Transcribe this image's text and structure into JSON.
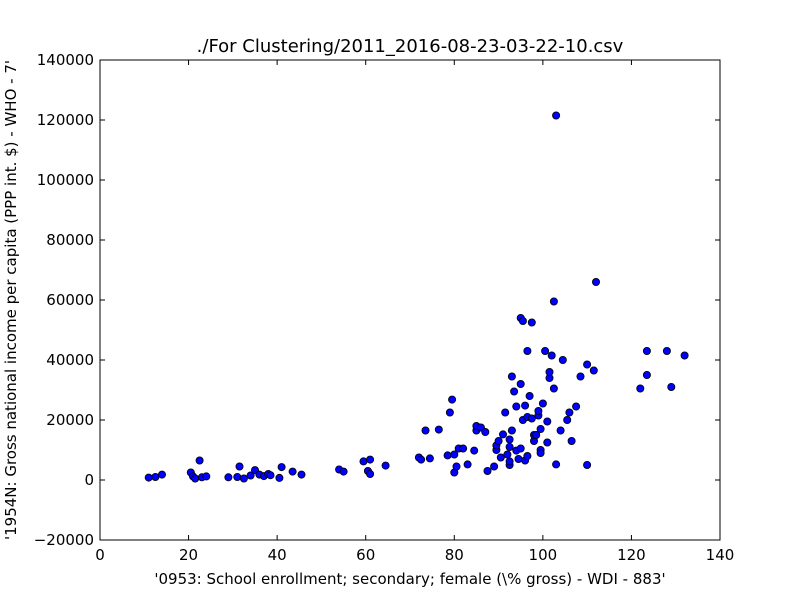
{
  "chart_data": {
    "type": "scatter",
    "title": "./For Clustering/2011_2016-08-23-03-22-10.csv",
    "xlabel": "'0953: School enrollment; secondary; female  (\\% gross) - WDI - 883'",
    "ylabel": "'1954N: Gross national income per capita (PPP int. $) - WHO - 7'",
    "xlim": [
      0,
      140
    ],
    "ylim": [
      -20000,
      140000
    ],
    "xticks": [
      0,
      20,
      40,
      60,
      80,
      100,
      120,
      140
    ],
    "yticks": [
      -20000,
      0,
      20000,
      40000,
      60000,
      80000,
      100000,
      120000,
      140000
    ],
    "xtick_labels": [
      "0",
      "20",
      "40",
      "60",
      "80",
      "100",
      "120",
      "140"
    ],
    "ytick_labels": [
      "−20000",
      "0",
      "20000",
      "40000",
      "60000",
      "80000",
      "100000",
      "120000",
      "140000"
    ],
    "grid": false,
    "marker_color": "#0000ff",
    "marker_edge_color": "#000000",
    "points": [
      [
        11,
        800
      ],
      [
        12.5,
        1000
      ],
      [
        14,
        1800
      ],
      [
        20.5,
        2500
      ],
      [
        21,
        1200
      ],
      [
        21.5,
        500
      ],
      [
        22.5,
        6500
      ],
      [
        23,
        900
      ],
      [
        24,
        1200
      ],
      [
        29,
        900
      ],
      [
        31,
        1000
      ],
      [
        31.5,
        4500
      ],
      [
        32.5,
        500
      ],
      [
        34,
        1500
      ],
      [
        35,
        3300
      ],
      [
        36,
        1800
      ],
      [
        37,
        1300
      ],
      [
        38,
        2000
      ],
      [
        38.5,
        1600
      ],
      [
        40.5,
        700
      ],
      [
        41,
        4300
      ],
      [
        43.5,
        2800
      ],
      [
        45.5,
        1800
      ],
      [
        54,
        3500
      ],
      [
        55,
        2800
      ],
      [
        59.5,
        6200
      ],
      [
        60.5,
        3000
      ],
      [
        61,
        6800
      ],
      [
        61,
        2000
      ],
      [
        64.5,
        4800
      ],
      [
        72,
        7500
      ],
      [
        72.5,
        6800
      ],
      [
        73.5,
        16500
      ],
      [
        74.5,
        7200
      ],
      [
        76.5,
        16800
      ],
      [
        78.5,
        8200
      ],
      [
        79,
        22500
      ],
      [
        79.5,
        26800
      ],
      [
        80,
        2500
      ],
      [
        80,
        8500
      ],
      [
        80.5,
        4500
      ],
      [
        81,
        10500
      ],
      [
        82,
        10500
      ],
      [
        83,
        5200
      ],
      [
        84.5,
        9800
      ],
      [
        85,
        16500
      ],
      [
        85,
        18000
      ],
      [
        86,
        17500
      ],
      [
        87,
        16000
      ],
      [
        87.5,
        3000
      ],
      [
        89,
        4500
      ],
      [
        89.5,
        10000
      ],
      [
        89.5,
        11500
      ],
      [
        90,
        13000
      ],
      [
        90.5,
        7500
      ],
      [
        91,
        15200
      ],
      [
        91.5,
        22500
      ],
      [
        92,
        8500
      ],
      [
        92.5,
        5000
      ],
      [
        92.5,
        6200
      ],
      [
        92.5,
        11000
      ],
      [
        92.5,
        13500
      ],
      [
        93,
        16500
      ],
      [
        93,
        34500
      ],
      [
        93.5,
        29500
      ],
      [
        94,
        24500
      ],
      [
        94,
        9800
      ],
      [
        94.5,
        7000
      ],
      [
        95,
        32000
      ],
      [
        95,
        10500
      ],
      [
        95,
        54000
      ],
      [
        95.5,
        53000
      ],
      [
        95.5,
        20000
      ],
      [
        96,
        24800
      ],
      [
        96,
        6500
      ],
      [
        96.5,
        43000
      ],
      [
        96.5,
        21000
      ],
      [
        96.5,
        8000
      ],
      [
        97,
        28000
      ],
      [
        97.5,
        20500
      ],
      [
        97.5,
        52500
      ],
      [
        98,
        13000
      ],
      [
        98,
        15000
      ],
      [
        98.5,
        15000
      ],
      [
        99,
        21500
      ],
      [
        99,
        23000
      ],
      [
        99.5,
        10000
      ],
      [
        99.5,
        17000
      ],
      [
        99.5,
        9000
      ],
      [
        100,
        25500
      ],
      [
        100.5,
        43000
      ],
      [
        101,
        12500
      ],
      [
        101,
        19500
      ],
      [
        101.5,
        34000
      ],
      [
        101.5,
        36000
      ],
      [
        102,
        41500
      ],
      [
        102.5,
        59500
      ],
      [
        102.5,
        30500
      ],
      [
        103,
        5200
      ],
      [
        103,
        121500
      ],
      [
        104,
        16500
      ],
      [
        104.5,
        40000
      ],
      [
        105.5,
        20000
      ],
      [
        106,
        22500
      ],
      [
        106.5,
        13000
      ],
      [
        107.5,
        24500
      ],
      [
        108.5,
        34500
      ],
      [
        110,
        38500
      ],
      [
        110,
        5000
      ],
      [
        111.5,
        36500
      ],
      [
        112,
        66000
      ],
      [
        122,
        30500
      ],
      [
        123.5,
        43000
      ],
      [
        123.5,
        35000
      ],
      [
        128,
        43000
      ],
      [
        129,
        31000
      ],
      [
        132,
        41500
      ]
    ]
  }
}
